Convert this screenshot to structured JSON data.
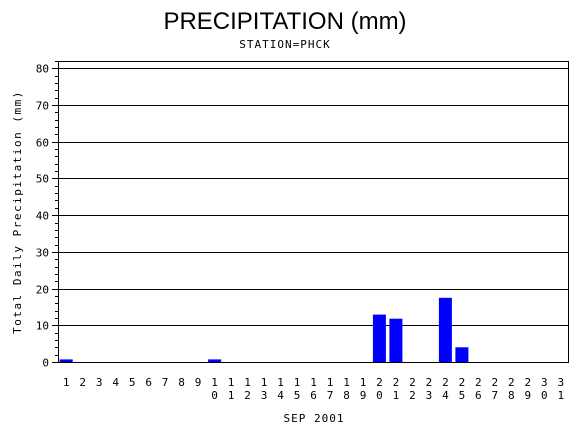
{
  "chart_data": {
    "type": "bar",
    "title": "PRECIPITATION (mm)",
    "subtitle": "STATION=PHCK",
    "xlabel": "SEP 2001",
    "ylabel": "Total Daily Precipitation (mm)",
    "ylim": [
      0,
      82
    ],
    "yticks": [
      0,
      10,
      20,
      30,
      40,
      50,
      60,
      70,
      80
    ],
    "grid": "horizontal",
    "colors": {
      "bar": "#0000ff",
      "grid": "#000000",
      "axis": "#000000"
    },
    "categories": [
      "1",
      "2",
      "3",
      "4",
      "5",
      "6",
      "7",
      "8",
      "9",
      "10",
      "11",
      "12",
      "13",
      "14",
      "15",
      "16",
      "17",
      "18",
      "19",
      "20",
      "21",
      "22",
      "23",
      "24",
      "25",
      "26",
      "27",
      "28",
      "29",
      "30",
      "31"
    ],
    "values": [
      0.7,
      0,
      0,
      0,
      0,
      0,
      0,
      0,
      0,
      0.7,
      0,
      0,
      0,
      0,
      0,
      0,
      0,
      0,
      0,
      12.9,
      11.8,
      0,
      0,
      17.5,
      4.0,
      0,
      0,
      0,
      0,
      0,
      0
    ]
  }
}
